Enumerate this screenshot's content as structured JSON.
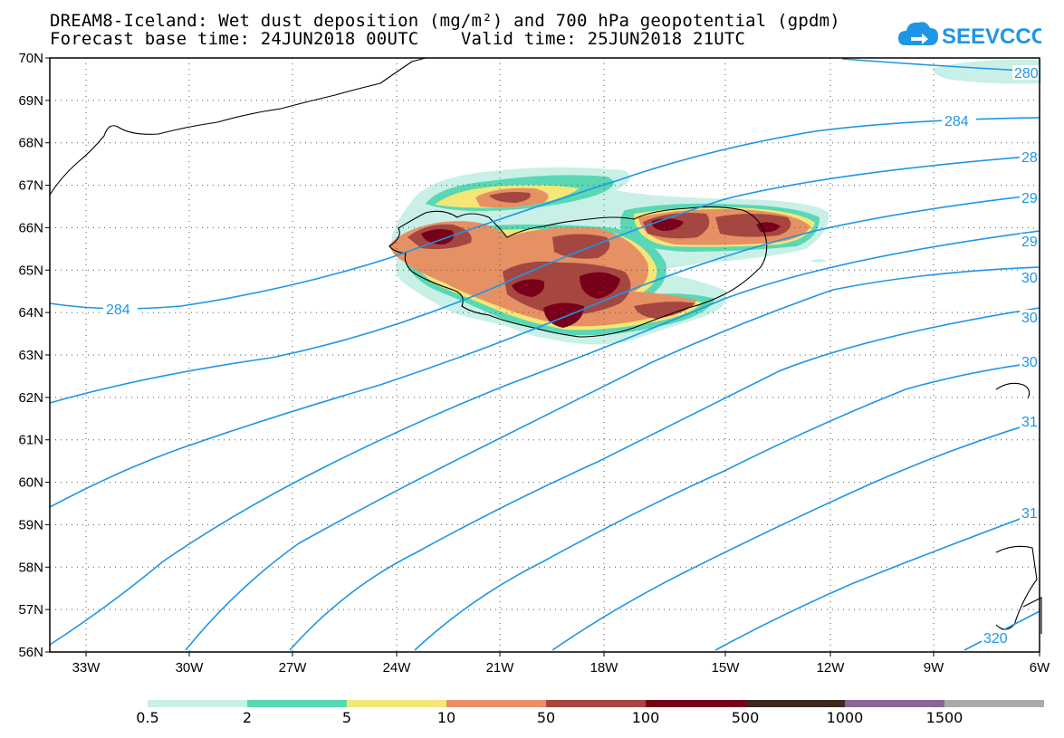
{
  "title": {
    "line1": "DREAM8-Iceland: Wet dust deposition (mg/m²) and 700 hPa geopotential (gpdm)",
    "line2": "Forecast base time: 24JUN2018 00UTC    Valid time: 25JUN2018 21UTC"
  },
  "logo": {
    "text": "SEEVCCC"
  },
  "axes": {
    "lat_labels": [
      "70N",
      "69N",
      "68N",
      "67N",
      "66N",
      "65N",
      "64N",
      "63N",
      "62N",
      "61N",
      "60N",
      "59N",
      "58N",
      "57N",
      "56N"
    ],
    "lon_labels": [
      "33W",
      "30W",
      "27W",
      "24W",
      "21W",
      "18W",
      "15W",
      "12W",
      "9W",
      "6W"
    ]
  },
  "contour_labels": [
    "280",
    "284",
    "28",
    "29",
    "29",
    "30",
    "30",
    "30",
    "31",
    "31",
    "320",
    "284"
  ],
  "colorbar": {
    "labels": [
      "0.5",
      "2",
      "5",
      "10",
      "50",
      "100",
      "500",
      "1000",
      "1500"
    ],
    "colors": [
      "#c8f0e6",
      "#5ad7b4",
      "#f5e678",
      "#e69164",
      "#a54641",
      "#780019",
      "#3c281e",
      "#8c6496",
      "#aaaaaa"
    ]
  },
  "colors": {
    "contour": "#1e96e6",
    "grid": "#555555"
  }
}
